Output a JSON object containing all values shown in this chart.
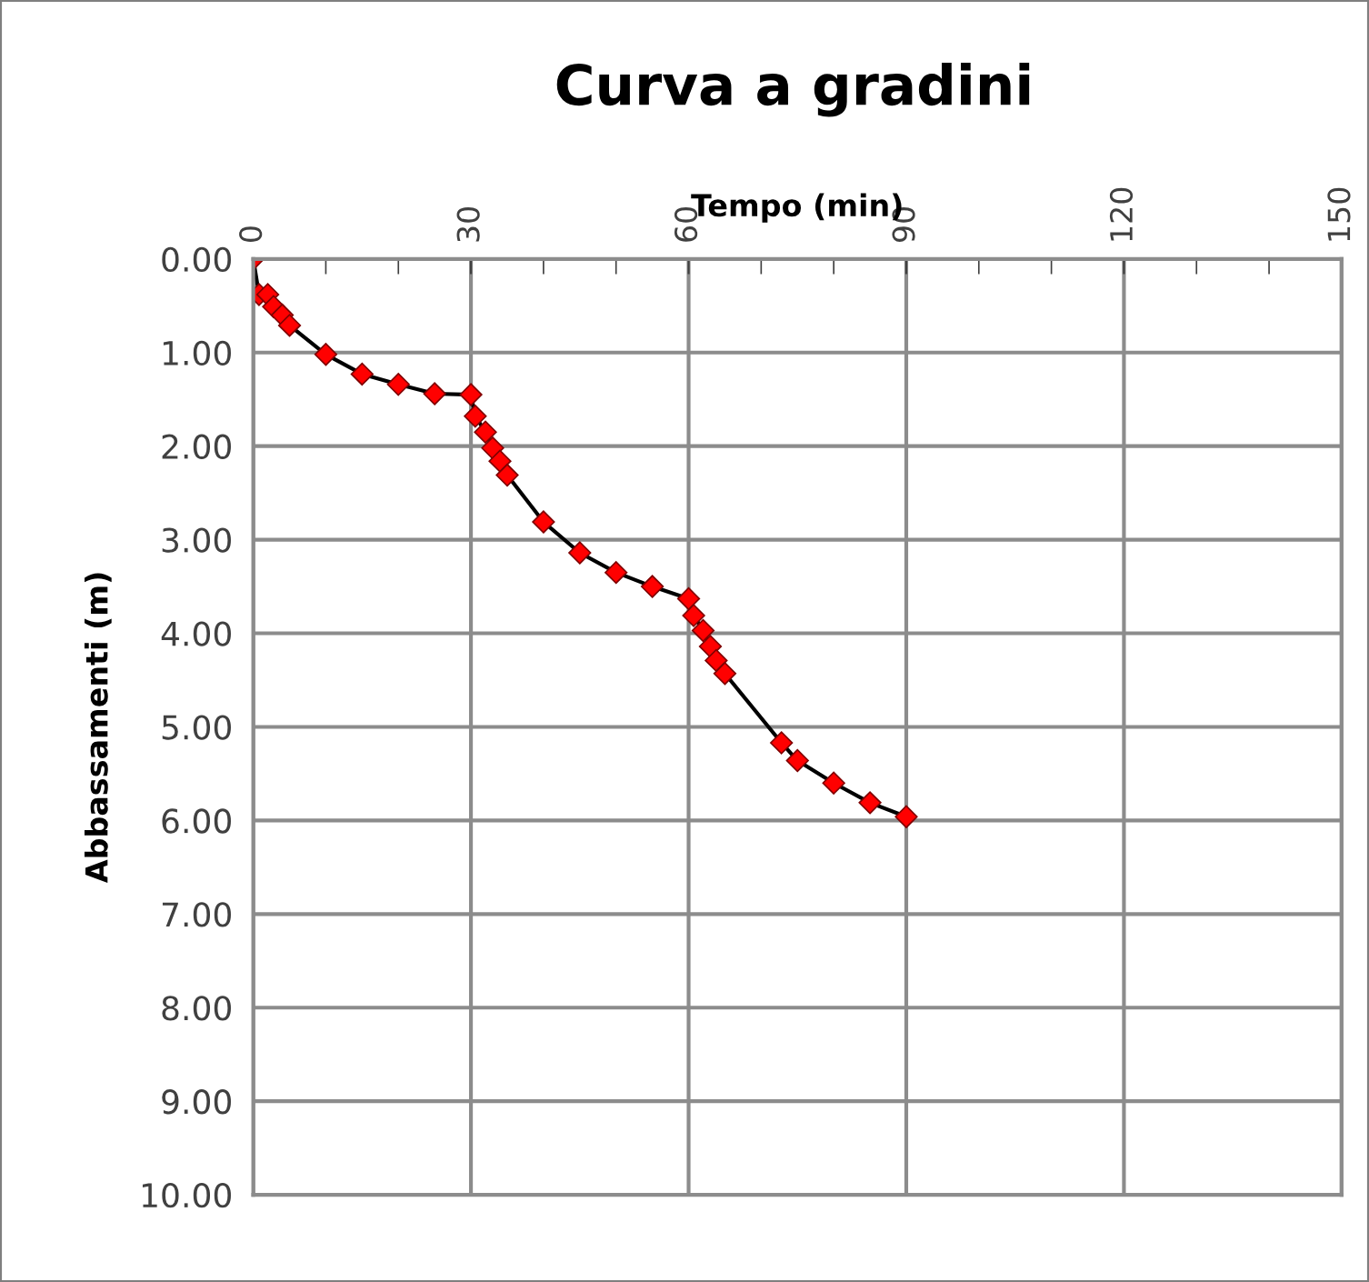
{
  "chart_data": {
    "type": "line",
    "title": "Curva a gradini",
    "xlabel": "Tempo (min)",
    "ylabel": "Abbassamenti (m)",
    "x": [
      0,
      0.8,
      2,
      2.8,
      4,
      5,
      10,
      15,
      20,
      25,
      30,
      30.6,
      32,
      33,
      34,
      35,
      40,
      45,
      50,
      55,
      60,
      60.7,
      62,
      63,
      63.8,
      65,
      72.8,
      75,
      80,
      85,
      90
    ],
    "series": [
      {
        "color": "#ff0000",
        "values": [
          0,
          0.38,
          0.38,
          0.51,
          0.6,
          0.71,
          1.02,
          1.23,
          1.34,
          1.44,
          1.45,
          1.68,
          1.85,
          2.02,
          2.16,
          2.31,
          2.81,
          3.14,
          3.35,
          3.5,
          3.63,
          3.81,
          3.97,
          4.14,
          4.29,
          4.43,
          5.17,
          5.36,
          5.6,
          5.81,
          5.96
        ]
      }
    ],
    "xlim": [
      0,
      150
    ],
    "xticks": [
      0,
      {
        "value": 10,
        "label": null
      },
      {
        "value": 20,
        "label": null
      },
      30,
      {
        "value": 40,
        "label": null
      },
      {
        "value": 50,
        "label": null
      },
      60,
      {
        "value": 70,
        "label": null
      },
      {
        "value": 80,
        "label": null
      },
      90,
      {
        "value": 100,
        "label": null
      },
      {
        "value": 110,
        "label": null
      },
      120,
      {
        "value": 130,
        "label": null
      },
      {
        "value": 140,
        "label": null
      },
      150
    ],
    "ylim": [
      10,
      0
    ],
    "yticks": [
      {
        "value": 0,
        "label": "0.00"
      },
      {
        "value": 1,
        "label": "1.00"
      },
      {
        "value": 2,
        "label": "2.00"
      },
      {
        "value": 3,
        "label": "3.00"
      },
      {
        "value": 4,
        "label": "4.00"
      },
      {
        "value": 5,
        "label": "5.00"
      },
      {
        "value": 6,
        "label": "6.00"
      },
      {
        "value": 7,
        "label": "7.00"
      },
      {
        "value": 8,
        "label": "8.00"
      },
      {
        "value": 9,
        "label": "9.00"
      },
      {
        "value": 10,
        "label": "10.00"
      }
    ],
    "grid": true,
    "marker": "diamond",
    "line_style": "solid",
    "legend": false
  }
}
